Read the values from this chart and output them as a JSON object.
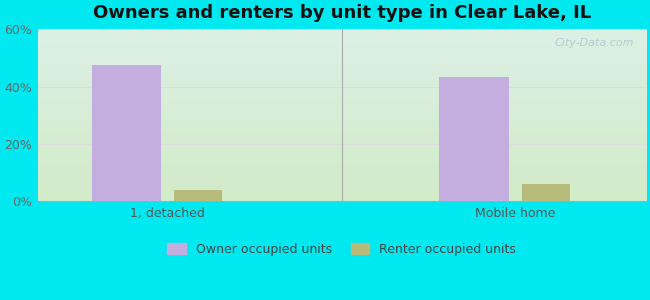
{
  "title": "Owners and renters by unit type in Clear Lake, IL",
  "categories": [
    "1, detached",
    "Mobile home"
  ],
  "owner_values": [
    47.5,
    43.5
  ],
  "renter_values": [
    4.0,
    6.0
  ],
  "owner_color": "#c4aee0",
  "renter_color": "#b8bc7a",
  "background_color": "#00e8f0",
  "ylim": [
    0,
    60
  ],
  "yticks": [
    0,
    20,
    40,
    60
  ],
  "yticklabels": [
    "0%",
    "20%",
    "40%",
    "60%"
  ],
  "legend_owner": "Owner occupied units",
  "legend_renter": "Renter occupied units",
  "watermark": "City-Data.com",
  "title_fontsize": 13,
  "tick_fontsize": 9,
  "legend_fontsize": 9,
  "owner_bar_width": 0.32,
  "renter_bar_width": 0.22,
  "group_centers": [
    1.0,
    2.6
  ],
  "separator_x": 1.8,
  "xlim": [
    0.4,
    3.2
  ]
}
